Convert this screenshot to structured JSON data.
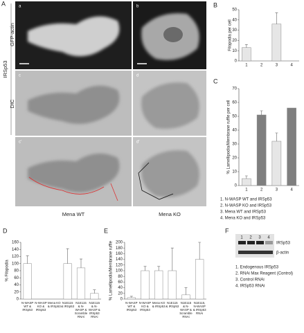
{
  "figure": {
    "letters": [
      "A",
      "B",
      "C",
      "D",
      "E",
      "F"
    ],
    "side_labels": [
      "IRSp53",
      "GFP-actin",
      "DIC"
    ],
    "image_labels": [
      "a",
      "b",
      "c",
      "d",
      "c'",
      "d'"
    ],
    "column_labels": [
      "Mena WT",
      "Mena KO"
    ],
    "legend_c": [
      "1. N-WASP WT and IRSp53",
      "2. N-WASP KO and IRSp53",
      "3. Mena WT and IRSp53",
      "4. Mena KO and IRSp53"
    ],
    "blot": {
      "lanes": [
        "1",
        "2",
        "3",
        "4"
      ],
      "bands": [
        "IRSp53",
        "β-actin"
      ],
      "legend": [
        "1. Endogenous IRSp53",
        "2. RNAi Max Reagent (Control)",
        "3. Control RNAi",
        "4. IRSp53 RNAi"
      ]
    }
  },
  "chart_data": [
    {
      "type": "bar",
      "y_label": "Filopodia per cell",
      "categories": [
        "1",
        "2",
        "3",
        "4"
      ],
      "values": [
        13,
        0,
        36,
        0
      ],
      "errors": [
        3,
        null,
        11,
        null
      ],
      "colors": [
        "#e6e6e6",
        "#e6e6e6",
        "#e6e6e6",
        "#e6e6e6"
      ],
      "ylim": [
        0,
        50
      ],
      "yticks": [
        0,
        10,
        20,
        30,
        40,
        50
      ]
    },
    {
      "type": "bar",
      "y_label": "% Lamellipodia/Membrane ruffle per cell",
      "categories": [
        "1",
        "2",
        "3",
        "4"
      ],
      "values": [
        5,
        51,
        32,
        56
      ],
      "errors": [
        2,
        3,
        6,
        null
      ],
      "colors": [
        "#e6e6e6",
        "#7f7f7f",
        "#e6e6e6",
        "#7f7f7f"
      ],
      "ylim": [
        0,
        70
      ],
      "yticks": [
        0,
        10,
        20,
        30,
        40,
        50,
        60,
        70
      ]
    },
    {
      "type": "bar",
      "y_label": "% Filopodia",
      "categories": [
        "N-WASP WT & IRSp53",
        "N-WASP KO & IRSp53",
        "Mena KO & IRSp53",
        "N1E115 & IRSp53",
        "N1E115 & N-WASP & Scramble RNAi",
        "N1E115 & N-WASP & IRSp53 RNAi"
      ],
      "values": [
        100,
        0,
        0,
        100,
        88,
        16
      ],
      "errors": [
        22,
        null,
        null,
        42,
        25,
        10
      ],
      "colors": [
        "#ffffff",
        "#ffffff",
        "#ffffff",
        "#ffffff",
        "#ffffff",
        "#ffffff"
      ],
      "ylim": [
        0,
        160
      ],
      "yticks": [
        0,
        20,
        40,
        60,
        80,
        100,
        120,
        140,
        160
      ]
    },
    {
      "type": "bar",
      "y_label": "% Lamellipodia/Membrane ruffle",
      "categories": [
        "N-WASP WT & IRSp53",
        "N-WASP KO & IRSp53",
        "Mena KO & IRSp53",
        "N1E115 & IRSp53",
        "N1E115 & N-WASP & Scramble RNAi",
        "N1E115, N-WASP & IRSp53 RNAi"
      ],
      "values": [
        5,
        100,
        100,
        100,
        15,
        140
      ],
      "errors": [
        5,
        15,
        15,
        80,
        25,
        60
      ],
      "colors": [
        "#ffffff",
        "#ffffff",
        "#ffffff",
        "#ffffff",
        "#ffffff",
        "#ffffff"
      ],
      "ylim": [
        0,
        200
      ],
      "yticks": [
        0,
        20,
        40,
        60,
        80,
        100,
        120,
        140,
        160,
        180,
        200
      ]
    }
  ]
}
